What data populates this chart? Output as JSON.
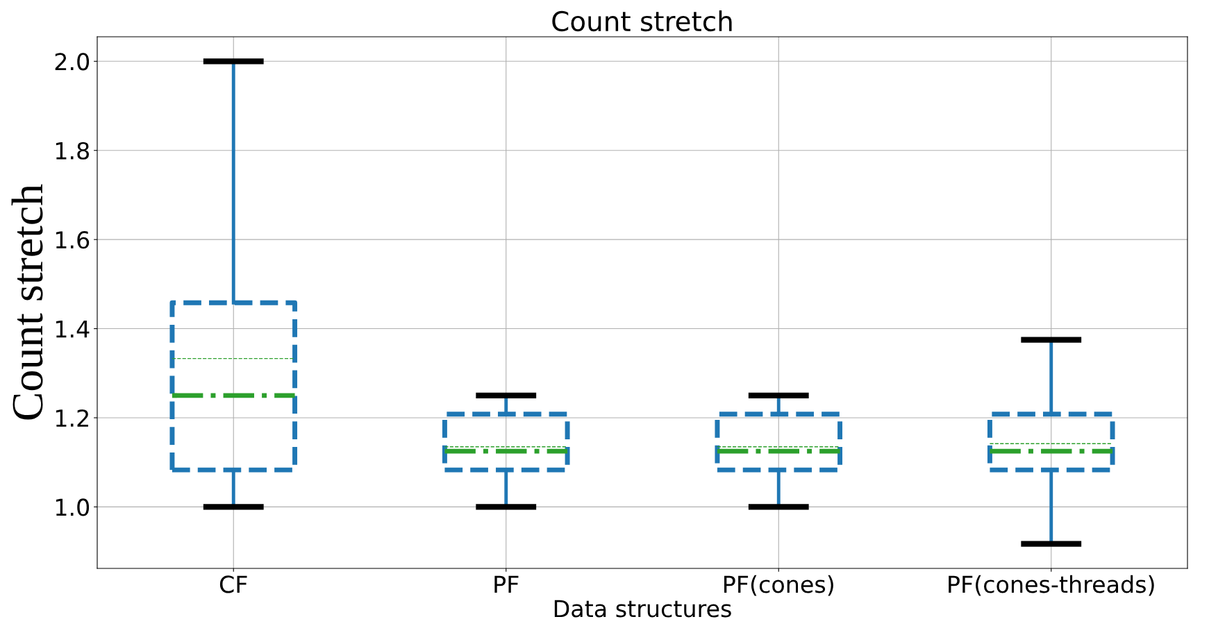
{
  "chart_data": {
    "type": "box",
    "title": "Count stretch",
    "xlabel": "Data structures",
    "ylabel": "Count stretch",
    "categories": [
      "CF",
      "PF",
      "PF(cones)",
      "PF(cones-threads)"
    ],
    "series": [
      {
        "color": "#1f77b4",
        "boxes": [
          {
            "low": 1.0,
            "q1": 1.083,
            "median": 1.25,
            "q3": 1.458,
            "high": 2.0,
            "mean": 1.333
          },
          {
            "low": 1.0,
            "q1": 1.083,
            "median": 1.125,
            "q3": 1.208,
            "high": 1.25,
            "mean": 1.135
          },
          {
            "low": 1.0,
            "q1": 1.083,
            "median": 1.125,
            "q3": 1.208,
            "high": 1.25,
            "mean": 1.135
          },
          {
            "low": 0.917,
            "q1": 1.083,
            "median": 1.125,
            "q3": 1.208,
            "high": 1.375,
            "mean": 1.142
          }
        ]
      }
    ],
    "ylim": [
      0.862,
      2.055
    ],
    "yticks": [
      {
        "value": 1.0,
        "label": "1.0"
      },
      1.2,
      1.4,
      1.6,
      1.8,
      {
        "value": 2.0,
        "label": "2.0"
      }
    ],
    "grid": true,
    "line_style": "dashed"
  }
}
